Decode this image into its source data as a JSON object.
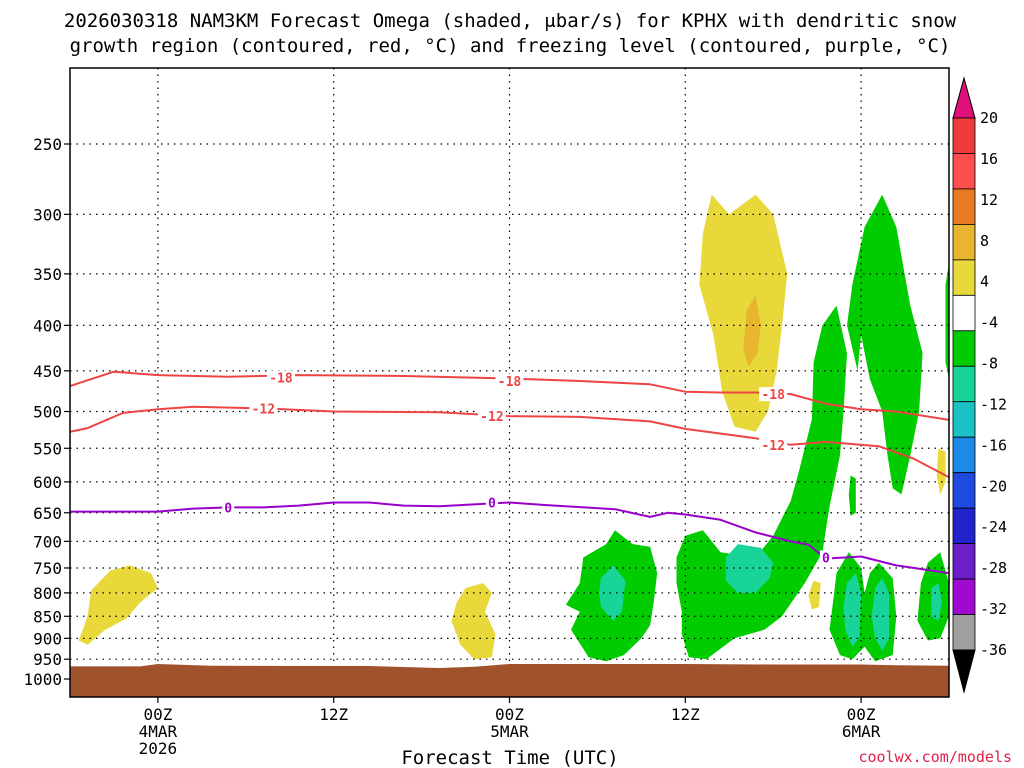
{
  "chart_data": {
    "type": "heatmap",
    "title_line1": "2026030318 NAM3KM Forecast Omega (shaded, μbar/s) for KPHX with dendritic snow",
    "title_line2": "growth region (contoured, red, °C) and freezing level (contoured, purple, °C)",
    "xlabel": "Forecast Time (UTC)",
    "credit": "coolwx.com/models",
    "x_range_hours": [
      -5,
      45
    ],
    "y_levels": [
      250,
      300,
      350,
      400,
      450,
      500,
      550,
      600,
      650,
      700,
      750,
      800,
      850,
      900,
      950,
      1000
    ],
    "y_range_hpa": [
      200,
      1015
    ],
    "x_ticks": [
      {
        "hour": 0,
        "lines": [
          "00Z",
          "4MAR",
          "2026"
        ]
      },
      {
        "hour": 10,
        "lines": [
          "12Z"
        ]
      },
      {
        "hour": 20,
        "lines": [
          "00Z",
          "5MAR"
        ]
      },
      {
        "hour": 30,
        "lines": [
          "12Z"
        ]
      },
      {
        "hour": 40,
        "lines": [
          "00Z",
          "6MAR"
        ]
      }
    ],
    "colorbar": {
      "labels": [
        "20",
        "16",
        "12",
        "8",
        "4",
        "-4",
        "-8",
        "-12",
        "-16",
        "-20",
        "-24",
        "-28",
        "-32",
        "-36"
      ],
      "colors": [
        "#f0f0f0",
        "#ee3a3a",
        "#ff4e4e",
        "#e87a23",
        "#e8b52e",
        "#e8d83a",
        "#ffffff",
        "#00cc00",
        "#19d499",
        "#19c3c3",
        "#1c8ae6",
        "#1f4ae0",
        "#2222cc",
        "#6a1fc8",
        "#a00ad0",
        "#a0a0a0"
      ],
      "top_arrow_color": "#e0107a",
      "bottom_arrow_color": "#000000"
    },
    "contours": {
      "dgz_minus18": {
        "label": "-18",
        "color": "#ee4444",
        "points": [
          [
            -5,
            468
          ],
          [
            -2.5,
            451
          ],
          [
            0,
            455
          ],
          [
            4,
            457
          ],
          [
            8,
            455
          ],
          [
            14,
            456
          ],
          [
            20,
            459
          ],
          [
            24,
            462
          ],
          [
            28,
            466
          ],
          [
            30,
            475
          ],
          [
            32,
            476
          ],
          [
            34,
            476
          ],
          [
            36,
            478
          ],
          [
            38,
            490
          ],
          [
            40,
            497
          ],
          [
            42,
            500
          ],
          [
            45,
            511
          ]
        ]
      },
      "dgz_minus12": {
        "label": "-12",
        "color": "#ee4444",
        "points": [
          [
            -5,
            527
          ],
          [
            -4,
            522
          ],
          [
            -2,
            502
          ],
          [
            0,
            497
          ],
          [
            2,
            494
          ],
          [
            6,
            496
          ],
          [
            10,
            500
          ],
          [
            16,
            501
          ],
          [
            20,
            506
          ],
          [
            24,
            507
          ],
          [
            28,
            513
          ],
          [
            30,
            523
          ],
          [
            34,
            536
          ],
          [
            36,
            545
          ],
          [
            38,
            541
          ],
          [
            41,
            547
          ],
          [
            43,
            565
          ],
          [
            45,
            593
          ]
        ]
      },
      "freezing_0": {
        "label": "0",
        "color": "#9900cc",
        "points": [
          [
            -5,
            648
          ],
          [
            0,
            648
          ],
          [
            2,
            643
          ],
          [
            4,
            641
          ],
          [
            6,
            641
          ],
          [
            8,
            638
          ],
          [
            10,
            633
          ],
          [
            12,
            633
          ],
          [
            14,
            638
          ],
          [
            16,
            639
          ],
          [
            20,
            633
          ],
          [
            22,
            637
          ],
          [
            26,
            644
          ],
          [
            28,
            657
          ],
          [
            29,
            650
          ],
          [
            30,
            653
          ],
          [
            32,
            662
          ],
          [
            34,
            684
          ],
          [
            36,
            700
          ],
          [
            37,
            706
          ],
          [
            38,
            732
          ],
          [
            40,
            728
          ],
          [
            42,
            745
          ],
          [
            45,
            760
          ]
        ]
      }
    },
    "contour_labels": [
      {
        "text": "-18",
        "hour": 7,
        "hpa": 458,
        "color": "#ee4444"
      },
      {
        "text": "-18",
        "hour": 20,
        "hpa": 462,
        "color": "#ee4444"
      },
      {
        "text": "-18",
        "hour": 35,
        "hpa": 478,
        "color": "#ee4444"
      },
      {
        "text": "-12",
        "hour": 6,
        "hpa": 496,
        "color": "#ee4444"
      },
      {
        "text": "-12",
        "hour": 19,
        "hpa": 506,
        "color": "#ee4444"
      },
      {
        "text": "-12",
        "hour": 35,
        "hpa": 545,
        "color": "#ee4444"
      },
      {
        "text": "0",
        "hour": 4,
        "hpa": 641,
        "color": "#9900cc"
      },
      {
        "text": "0",
        "hour": 19,
        "hpa": 633,
        "color": "#9900cc"
      },
      {
        "text": "0",
        "hour": 38,
        "hpa": 730,
        "color": "#9900cc"
      }
    ],
    "shaded_regions": [
      {
        "name": "omega-pos-early",
        "value": 4,
        "color": "#e8d83a",
        "points": [
          [
            -3.8,
            795
          ],
          [
            -2.7,
            755
          ],
          [
            -1.6,
            745
          ],
          [
            -0.4,
            760
          ],
          [
            0,
            790
          ],
          [
            -1,
            820
          ],
          [
            -1.8,
            855
          ],
          [
            -3,
            880
          ],
          [
            -4,
            915
          ],
          [
            -4.5,
            905
          ],
          [
            -4,
            850
          ]
        ]
      },
      {
        "name": "omega-pos-midday",
        "value": 4,
        "color": "#e8d83a",
        "points": [
          [
            17.5,
            790
          ],
          [
            18.5,
            780
          ],
          [
            19,
            800
          ],
          [
            18.6,
            840
          ],
          [
            19.2,
            890
          ],
          [
            19,
            945
          ],
          [
            18,
            950
          ],
          [
            17.2,
            915
          ],
          [
            16.7,
            860
          ],
          [
            17,
            820
          ]
        ]
      },
      {
        "name": "omega-pos-upper",
        "value": 4,
        "color": "#e8d83a",
        "points": [
          [
            31.5,
            285
          ],
          [
            32.5,
            300
          ],
          [
            34,
            285
          ],
          [
            35,
            300
          ],
          [
            35.8,
            350
          ],
          [
            35.5,
            400
          ],
          [
            35.2,
            450
          ],
          [
            34.7,
            500
          ],
          [
            34,
            527
          ],
          [
            32.8,
            520
          ],
          [
            32.1,
            475
          ],
          [
            31.6,
            410
          ],
          [
            30.8,
            360
          ],
          [
            31,
            315
          ]
        ]
      },
      {
        "name": "omega-pos-upper-core",
        "value": 8,
        "color": "#e8b52e",
        "points": [
          [
            33.5,
            385
          ],
          [
            34,
            370
          ],
          [
            34.3,
            400
          ],
          [
            34.1,
            430
          ],
          [
            33.6,
            445
          ],
          [
            33.3,
            425
          ]
        ]
      },
      {
        "name": "omega-pos-small-a",
        "value": 4,
        "color": "#e8d83a",
        "points": [
          [
            37.3,
            775
          ],
          [
            37.7,
            780
          ],
          [
            37.6,
            830
          ],
          [
            37.2,
            835
          ],
          [
            37,
            805
          ]
        ]
      },
      {
        "name": "omega-pos-small-b",
        "value": 4,
        "color": "#e8d83a",
        "points": [
          [
            44.4,
            550
          ],
          [
            44.8,
            555
          ],
          [
            44.8,
            600
          ],
          [
            44.5,
            620
          ],
          [
            44.3,
            590
          ]
        ]
      },
      {
        "name": "omega-neg-a",
        "value": -4,
        "color": "#00cc00",
        "points": [
          [
            24.2,
            730
          ],
          [
            25.5,
            705
          ],
          [
            26,
            680
          ],
          [
            27,
            705
          ],
          [
            28,
            710
          ],
          [
            28.4,
            760
          ],
          [
            28.2,
            820
          ],
          [
            28,
            870
          ],
          [
            27.5,
            900
          ],
          [
            26.5,
            940
          ],
          [
            25.5,
            955
          ],
          [
            24.5,
            945
          ],
          [
            24.2,
            925
          ],
          [
            23.5,
            880
          ],
          [
            24,
            840
          ],
          [
            23.2,
            825
          ],
          [
            24,
            780
          ]
        ]
      },
      {
        "name": "omega-neg-b",
        "value": -4,
        "color": "#00cc00",
        "points": [
          [
            29.5,
            730
          ],
          [
            30,
            690
          ],
          [
            31,
            680
          ],
          [
            32,
            720
          ],
          [
            34,
            730
          ],
          [
            35,
            690
          ],
          [
            36,
            630
          ],
          [
            36.5,
            580
          ],
          [
            37.2,
            510
          ],
          [
            37.3,
            440
          ],
          [
            37.8,
            400
          ],
          [
            38.6,
            380
          ],
          [
            39.2,
            430
          ],
          [
            39,
            500
          ],
          [
            38.8,
            560
          ],
          [
            38.2,
            640
          ],
          [
            37.8,
            720
          ],
          [
            36.8,
            780
          ],
          [
            35.5,
            850
          ],
          [
            34.5,
            880
          ],
          [
            32.8,
            900
          ],
          [
            31.2,
            950
          ],
          [
            30.2,
            945
          ],
          [
            29.8,
            890
          ],
          [
            29.8,
            840
          ],
          [
            29.5,
            780
          ]
        ]
      },
      {
        "name": "omega-neg-c",
        "value": -4,
        "color": "#00cc00",
        "points": [
          [
            39.5,
            360
          ],
          [
            40.2,
            310
          ],
          [
            41.2,
            285
          ],
          [
            42,
            310
          ],
          [
            42.8,
            380
          ],
          [
            43.5,
            430
          ],
          [
            43.3,
            500
          ],
          [
            42.8,
            560
          ],
          [
            42.3,
            620
          ],
          [
            41.8,
            610
          ],
          [
            41.5,
            560
          ],
          [
            41.2,
            500
          ],
          [
            40.5,
            460
          ],
          [
            40,
            410
          ],
          [
            39.8,
            450
          ],
          [
            39.2,
            400
          ]
        ]
      },
      {
        "name": "omega-neg-d",
        "value": -4,
        "color": "#00cc00",
        "points": [
          [
            38.6,
            760
          ],
          [
            39.3,
            720
          ],
          [
            40,
            750
          ],
          [
            40.2,
            800
          ],
          [
            40.5,
            760
          ],
          [
            41,
            740
          ],
          [
            41.8,
            770
          ],
          [
            42,
            850
          ],
          [
            41.8,
            940
          ],
          [
            40.8,
            955
          ],
          [
            40.2,
            920
          ],
          [
            39.5,
            950
          ],
          [
            38.8,
            940
          ],
          [
            38.2,
            880
          ],
          [
            38.4,
            820
          ]
        ]
      },
      {
        "name": "omega-neg-e",
        "value": -4,
        "color": "#00cc00",
        "points": [
          [
            39.4,
            590
          ],
          [
            39.7,
            595
          ],
          [
            39.7,
            650
          ],
          [
            39.4,
            655
          ],
          [
            39.3,
            620
          ]
        ]
      },
      {
        "name": "omega-neg-f",
        "value": -4,
        "color": "#00cc00",
        "points": [
          [
            43.8,
            740
          ],
          [
            44.5,
            720
          ],
          [
            45,
            780
          ],
          [
            45,
            850
          ],
          [
            44.5,
            900
          ],
          [
            43.8,
            905
          ],
          [
            43.2,
            860
          ],
          [
            43.4,
            780
          ]
        ]
      },
      {
        "name": "omega-neg-g",
        "value": -4,
        "color": "#00cc00",
        "points": [
          [
            44.8,
            360
          ],
          [
            45,
            340
          ],
          [
            45,
            460
          ],
          [
            44.8,
            440
          ]
        ]
      },
      {
        "name": "omega-neg-core-a",
        "value": -8,
        "color": "#19d499",
        "points": [
          [
            25.2,
            770
          ],
          [
            25.9,
            745
          ],
          [
            26.6,
            775
          ],
          [
            26.4,
            840
          ],
          [
            25.9,
            860
          ],
          [
            25.2,
            830
          ],
          [
            25.1,
            800
          ]
        ]
      },
      {
        "name": "omega-neg-core-b",
        "value": -8,
        "color": "#19d499",
        "points": [
          [
            32.3,
            730
          ],
          [
            33,
            705
          ],
          [
            34.3,
            712
          ],
          [
            35,
            740
          ],
          [
            34.8,
            770
          ],
          [
            34,
            800
          ],
          [
            33,
            800
          ],
          [
            32.3,
            775
          ]
        ]
      },
      {
        "name": "omega-neg-core-c",
        "value": -8,
        "color": "#19d499",
        "points": [
          [
            39.2,
            780
          ],
          [
            39.7,
            760
          ],
          [
            40,
            800
          ],
          [
            39.9,
            900
          ],
          [
            39.5,
            920
          ],
          [
            39.1,
            880
          ],
          [
            39,
            830
          ]
        ]
      },
      {
        "name": "omega-neg-core-d",
        "value": -8,
        "color": "#19d499",
        "points": [
          [
            40.8,
            790
          ],
          [
            41.2,
            770
          ],
          [
            41.6,
            800
          ],
          [
            41.6,
            900
          ],
          [
            41.2,
            930
          ],
          [
            40.8,
            900
          ],
          [
            40.6,
            850
          ]
        ]
      },
      {
        "name": "omega-neg-core-e",
        "value": -8,
        "color": "#19d499",
        "points": [
          [
            44,
            790
          ],
          [
            44.4,
            780
          ],
          [
            44.6,
            820
          ],
          [
            44.4,
            860
          ],
          [
            44,
            850
          ]
        ]
      }
    ],
    "ground": {
      "color": "#a0522d",
      "points": [
        [
          -5,
          968
        ],
        [
          -1,
          968
        ],
        [
          0,
          962
        ],
        [
          3,
          966
        ],
        [
          8,
          967
        ],
        [
          12,
          967
        ],
        [
          16,
          972
        ],
        [
          18,
          969
        ],
        [
          20,
          962
        ],
        [
          30,
          962
        ],
        [
          35,
          963
        ],
        [
          40,
          963
        ],
        [
          42,
          965
        ],
        [
          45,
          966
        ]
      ]
    }
  }
}
